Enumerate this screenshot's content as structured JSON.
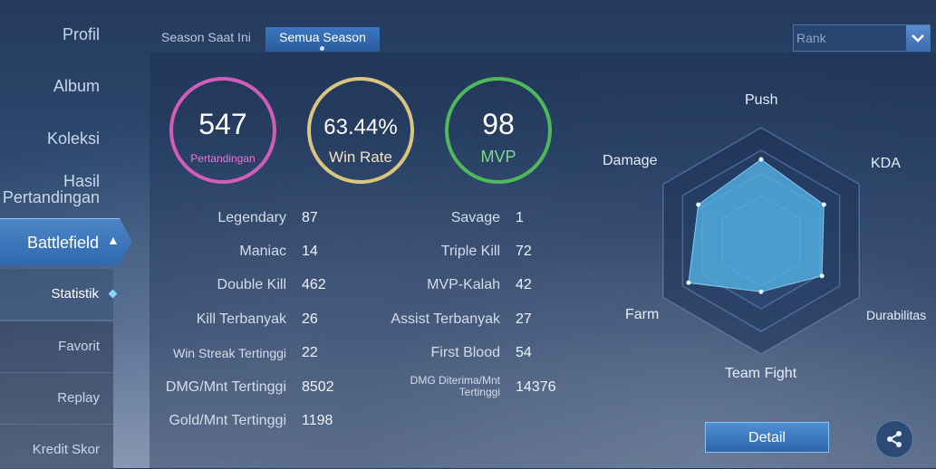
{
  "sidebar": {
    "items": [
      "Profil",
      "Album",
      "Koleksi"
    ],
    "hasil_line1": "Hasil",
    "hasil_line2": "Pertandingan",
    "active_section": "Battlefield",
    "sub_items": [
      "Statistik",
      "Favorit",
      "Replay",
      "Kredit Skor"
    ],
    "active_sub": "Statistik"
  },
  "tabs": [
    {
      "label": "Season Saat Ini",
      "active": false
    },
    {
      "label": "Semua Season",
      "active": true
    }
  ],
  "dropdown": {
    "placeholder": "Rank",
    "icon": "chevron-down-icon"
  },
  "circles": {
    "matches": {
      "value": "547",
      "label": "Pertandingan",
      "color": "#d25cb8"
    },
    "winrate": {
      "value": "63.44%",
      "label": "Win Rate",
      "color": "#d9c57f"
    },
    "mvp": {
      "value": "98",
      "label": "MVP",
      "color": "#4fb85a"
    }
  },
  "stats_left": [
    {
      "label": "Legendary",
      "value": "87"
    },
    {
      "label": "Maniac",
      "value": "14"
    },
    {
      "label": "Double Kill",
      "value": "462"
    },
    {
      "label": "Kill Terbanyak",
      "value": "26"
    },
    {
      "label": "Win Streak Tertinggi",
      "value": "22"
    },
    {
      "label": "DMG/Mnt Tertinggi",
      "value": "8502"
    },
    {
      "label": "Gold/Mnt Tertinggi",
      "value": "1198"
    }
  ],
  "stats_right": [
    {
      "label": "Savage",
      "value": "1"
    },
    {
      "label": "Triple Kill",
      "value": "72"
    },
    {
      "label": "MVP-Kalah",
      "value": "42"
    },
    {
      "label": "Assist Terbanyak",
      "value": "27"
    },
    {
      "label": "First Blood",
      "value": "54"
    },
    {
      "label_line1": "DMG Diterima/Mnt",
      "label_line2": "Tertinggi",
      "value": "14376"
    }
  ],
  "chart_data": {
    "type": "radar",
    "axes": [
      "Push",
      "KDA",
      "Durabilitas",
      "Team Fight",
      "Farm",
      "Damage"
    ],
    "series": [
      {
        "values": [
          0.72,
          0.64,
          0.62,
          0.45,
          0.74,
          0.64
        ]
      }
    ],
    "max": 1.0
  },
  "buttons": {
    "detail": "Detail",
    "share_icon": "share-icon"
  },
  "colors": {
    "accent": "#3a78c0",
    "radar_fill": "#55b4e8"
  }
}
